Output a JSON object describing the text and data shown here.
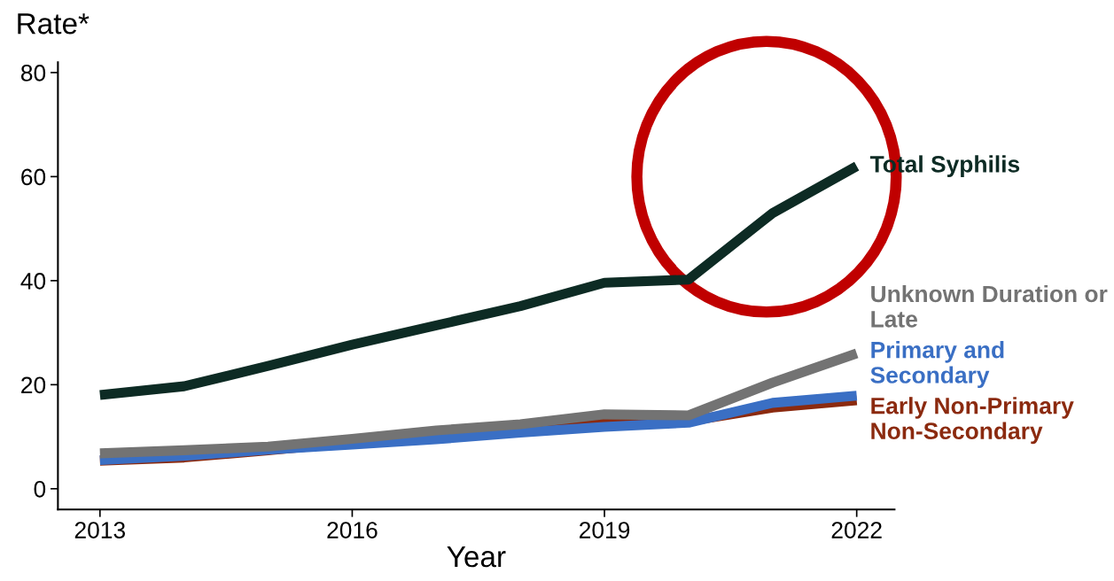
{
  "chart_data": {
    "type": "line",
    "xlabel": "Year",
    "ylabel": "Rate*",
    "x": [
      2013,
      2014,
      2015,
      2016,
      2017,
      2018,
      2019,
      2020,
      2021,
      2022
    ],
    "series": [
      {
        "name": "Early Non-Primary Non-Secondary",
        "color": "#8b2a0f",
        "values": [
          5.4,
          6.0,
          7.4,
          8.9,
          10.3,
          11.3,
          12.7,
          13.0,
          15.6,
          17.0
        ]
      },
      {
        "name": "Primary and Secondary",
        "color": "#3a6fc4",
        "values": [
          5.5,
          6.3,
          7.5,
          8.5,
          9.5,
          10.8,
          11.9,
          12.7,
          16.5,
          17.9
        ]
      },
      {
        "name": "Unknown Duration or Late",
        "color": "#737373",
        "values": [
          6.8,
          7.4,
          8.1,
          9.6,
          11.2,
          12.4,
          14.3,
          14.1,
          20.4,
          26.0
        ]
      },
      {
        "name": "Total Syphilis",
        "color": "#0d2b24",
        "values": [
          18.0,
          19.7,
          23.6,
          27.7,
          31.4,
          35.1,
          39.6,
          40.2,
          53.0,
          62.0
        ]
      }
    ],
    "xlim": [
      2012.5,
      2022.45
    ],
    "xticks": [
      2013,
      2016,
      2019,
      2022
    ],
    "ylim": [
      -4,
      82
    ],
    "yticks": [
      0,
      20,
      40,
      60,
      80
    ],
    "grid": false,
    "legend": false,
    "marker": "none",
    "line_style": "solid"
  }
}
